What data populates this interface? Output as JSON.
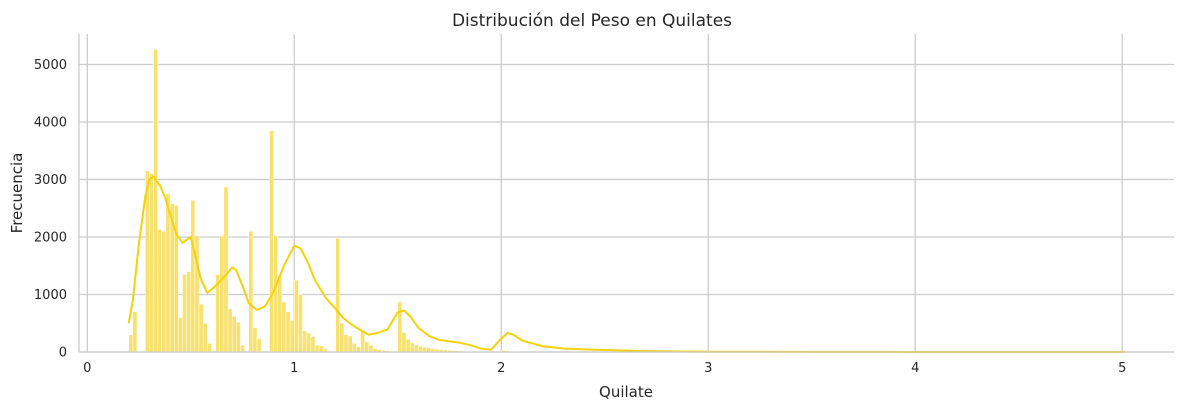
{
  "chart_data": {
    "type": "bar",
    "title": "Distribución del Peso en Quilates",
    "xlabel": "Quilate",
    "ylabel": "Frecuencia",
    "xlim": [
      -0.04,
      5.25
    ],
    "ylim": [
      0,
      5530
    ],
    "xticks": [
      0,
      1,
      2,
      3,
      4,
      5
    ],
    "yticks": [
      0,
      1000,
      2000,
      3000,
      4000,
      5000
    ],
    "grid": true,
    "bar_color": "#f8e16c",
    "line_color": "#f4d20c",
    "bin_width": 0.02,
    "bins": [
      [
        0.2,
        300
      ],
      [
        0.22,
        700
      ],
      [
        0.24,
        0
      ],
      [
        0.26,
        0
      ],
      [
        0.28,
        3150
      ],
      [
        0.3,
        3100
      ],
      [
        0.32,
        5260
      ],
      [
        0.34,
        2130
      ],
      [
        0.36,
        2100
      ],
      [
        0.38,
        2750
      ],
      [
        0.4,
        2580
      ],
      [
        0.42,
        2550
      ],
      [
        0.44,
        600
      ],
      [
        0.46,
        1350
      ],
      [
        0.48,
        1400
      ],
      [
        0.5,
        2640
      ],
      [
        0.52,
        2020
      ],
      [
        0.54,
        830
      ],
      [
        0.56,
        500
      ],
      [
        0.58,
        150
      ],
      [
        0.6,
        0
      ],
      [
        0.62,
        1350
      ],
      [
        0.64,
        2020
      ],
      [
        0.66,
        2870
      ],
      [
        0.68,
        750
      ],
      [
        0.7,
        620
      ],
      [
        0.72,
        520
      ],
      [
        0.74,
        120
      ],
      [
        0.76,
        0
      ],
      [
        0.78,
        2100
      ],
      [
        0.8,
        420
      ],
      [
        0.82,
        230
      ],
      [
        0.84,
        0
      ],
      [
        0.86,
        0
      ],
      [
        0.88,
        3850
      ],
      [
        0.9,
        2020
      ],
      [
        0.92,
        1320
      ],
      [
        0.94,
        870
      ],
      [
        0.96,
        700
      ],
      [
        0.98,
        550
      ],
      [
        1.0,
        1250
      ],
      [
        1.02,
        1000
      ],
      [
        1.04,
        370
      ],
      [
        1.06,
        330
      ],
      [
        1.08,
        270
      ],
      [
        1.1,
        120
      ],
      [
        1.12,
        110
      ],
      [
        1.14,
        50
      ],
      [
        1.16,
        0
      ],
      [
        1.18,
        0
      ],
      [
        1.2,
        1980
      ],
      [
        1.22,
        500
      ],
      [
        1.24,
        300
      ],
      [
        1.26,
        280
      ],
      [
        1.28,
        150
      ],
      [
        1.3,
        90
      ],
      [
        1.32,
        380
      ],
      [
        1.34,
        180
      ],
      [
        1.36,
        120
      ],
      [
        1.38,
        60
      ],
      [
        1.4,
        40
      ],
      [
        1.42,
        30
      ],
      [
        1.44,
        20
      ],
      [
        1.46,
        15
      ],
      [
        1.48,
        10
      ],
      [
        1.5,
        870
      ],
      [
        1.52,
        340
      ],
      [
        1.54,
        220
      ],
      [
        1.56,
        160
      ],
      [
        1.58,
        120
      ],
      [
        1.6,
        100
      ],
      [
        1.62,
        85
      ],
      [
        1.64,
        75
      ],
      [
        1.66,
        60
      ],
      [
        1.68,
        50
      ],
      [
        1.7,
        42
      ],
      [
        1.72,
        35
      ],
      [
        1.74,
        30
      ],
      [
        1.76,
        25
      ],
      [
        1.78,
        20
      ],
      [
        1.8,
        18
      ],
      [
        1.82,
        15
      ],
      [
        1.84,
        12
      ],
      [
        1.86,
        10
      ],
      [
        1.88,
        8
      ],
      [
        1.9,
        7
      ],
      [
        1.92,
        6
      ],
      [
        1.94,
        5
      ],
      [
        1.96,
        4
      ],
      [
        1.98,
        3
      ],
      [
        2.0,
        30
      ],
      [
        2.02,
        20
      ],
      [
        2.04,
        14
      ],
      [
        2.06,
        10
      ],
      [
        2.08,
        8
      ],
      [
        2.1,
        6
      ],
      [
        2.12,
        5
      ],
      [
        2.14,
        4
      ],
      [
        2.16,
        3
      ],
      [
        2.18,
        3
      ]
    ],
    "kde": {
      "x": [
        0.2,
        0.22,
        0.25,
        0.28,
        0.3,
        0.32,
        0.35,
        0.38,
        0.4,
        0.43,
        0.46,
        0.48,
        0.5,
        0.52,
        0.55,
        0.58,
        0.62,
        0.66,
        0.7,
        0.72,
        0.75,
        0.78,
        0.82,
        0.86,
        0.9,
        0.95,
        1.0,
        1.03,
        1.06,
        1.1,
        1.15,
        1.2,
        1.24,
        1.28,
        1.32,
        1.36,
        1.4,
        1.45,
        1.5,
        1.53,
        1.56,
        1.6,
        1.65,
        1.7,
        1.75,
        1.8,
        1.85,
        1.9,
        1.95,
        2.0,
        2.03,
        2.06,
        2.1,
        2.2,
        2.3,
        2.4,
        2.5,
        2.6,
        2.7,
        2.8,
        3.0,
        3.5,
        4.0,
        4.5,
        5.01
      ],
      "y": [
        500,
        900,
        1900,
        2700,
        3000,
        3050,
        2900,
        2650,
        2400,
        2050,
        1900,
        1950,
        2000,
        1700,
        1250,
        1030,
        1150,
        1300,
        1470,
        1420,
        1150,
        850,
        730,
        800,
        1050,
        1500,
        1850,
        1800,
        1600,
        1250,
        950,
        750,
        580,
        470,
        380,
        300,
        330,
        390,
        690,
        720,
        620,
        420,
        280,
        210,
        185,
        160,
        120,
        60,
        40,
        230,
        330,
        300,
        200,
        100,
        60,
        45,
        35,
        25,
        15,
        10,
        5,
        2,
        1,
        0.5,
        0.2
      ]
    }
  }
}
